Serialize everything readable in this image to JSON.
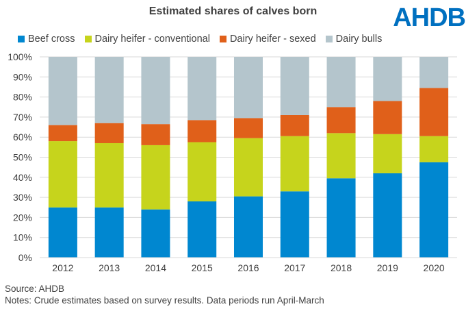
{
  "logo": {
    "text": "AHDB",
    "color": "#0070c0"
  },
  "footer": {
    "source": "Source: AHDB",
    "notes": "Notes: Crude estimates based on survey results. Data periods run April-March"
  },
  "chart_data": {
    "type": "bar",
    "stacked": true,
    "title": "Estimated shares of calves born",
    "xlabel": "",
    "ylabel": "",
    "categories": [
      "2012",
      "2013",
      "2014",
      "2015",
      "2016",
      "2017",
      "2018",
      "2019",
      "2020"
    ],
    "ylim": [
      0,
      100
    ],
    "yticks": [
      "0%",
      "10%",
      "20%",
      "30%",
      "40%",
      "50%",
      "60%",
      "70%",
      "80%",
      "90%",
      "100%"
    ],
    "grid": true,
    "legend_position": "top",
    "series": [
      {
        "name": "Beef cross",
        "color": "#0087d0",
        "values": [
          25,
          25,
          24,
          28,
          30.5,
          33,
          39.5,
          42,
          47.5
        ]
      },
      {
        "name": "Dairy heifer - conventional",
        "color": "#c6d41c",
        "values": [
          33,
          32,
          32,
          29.5,
          29,
          27.5,
          22.5,
          19.5,
          13
        ]
      },
      {
        "name": "Dairy heifer - sexed",
        "color": "#e0601a",
        "values": [
          8,
          10,
          10.5,
          11,
          10,
          10.5,
          13,
          16.5,
          24
        ]
      },
      {
        "name": "Dairy bulls",
        "color": "#b4c5cc",
        "values": [
          34,
          33,
          33.5,
          31.5,
          30.5,
          29,
          25,
          22,
          15.5
        ]
      }
    ]
  }
}
